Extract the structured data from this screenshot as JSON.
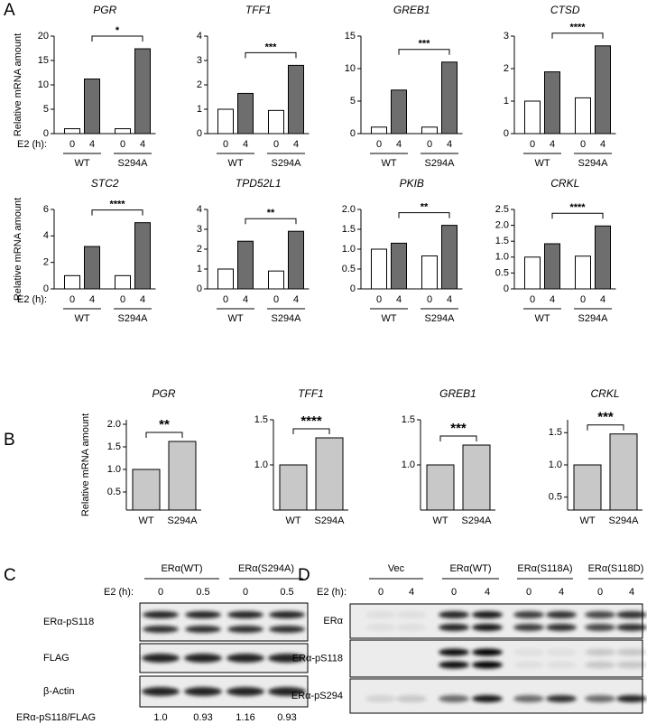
{
  "panel_labels": [
    "A",
    "B",
    "C",
    "D"
  ],
  "chart_data": [
    {
      "type": "bar",
      "title": "PGR",
      "y_label": "Relative mRNA amount",
      "x_label": "E2 (h):",
      "categories": [
        "0",
        "4",
        "0",
        "4"
      ],
      "groups": [
        "WT",
        "S294A"
      ],
      "values": [
        1.0,
        11.2,
        1.0,
        17.4
      ],
      "colors": [
        "#ffffff",
        "#6e6e6e",
        "#ffffff",
        "#6e6e6e"
      ],
      "ylim": [
        0,
        20
      ],
      "yticks": [
        0,
        5,
        10,
        15,
        20
      ],
      "significance": "*"
    },
    {
      "type": "bar",
      "title": "TFF1",
      "categories": [
        "0",
        "4",
        "0",
        "4"
      ],
      "groups": [
        "WT",
        "S294A"
      ],
      "values": [
        1.0,
        1.65,
        0.95,
        2.8
      ],
      "colors": [
        "#ffffff",
        "#6e6e6e",
        "#ffffff",
        "#6e6e6e"
      ],
      "ylim": [
        0,
        4
      ],
      "yticks": [
        0,
        1,
        2,
        3,
        4
      ],
      "significance": "***"
    },
    {
      "type": "bar",
      "title": "GREB1",
      "categories": [
        "0",
        "4",
        "0",
        "4"
      ],
      "groups": [
        "WT",
        "S294A"
      ],
      "values": [
        1.0,
        6.7,
        1.0,
        11.0
      ],
      "colors": [
        "#ffffff",
        "#6e6e6e",
        "#ffffff",
        "#6e6e6e"
      ],
      "ylim": [
        0,
        15
      ],
      "yticks": [
        0,
        5,
        10,
        15
      ],
      "significance": "***"
    },
    {
      "type": "bar",
      "title": "CTSD",
      "categories": [
        "0",
        "4",
        "0",
        "4"
      ],
      "groups": [
        "WT",
        "S294A"
      ],
      "values": [
        1.0,
        1.9,
        1.1,
        2.7
      ],
      "colors": [
        "#ffffff",
        "#6e6e6e",
        "#ffffff",
        "#6e6e6e"
      ],
      "ylim": [
        0,
        3
      ],
      "yticks": [
        0,
        1,
        2,
        3
      ],
      "significance": "****"
    },
    {
      "type": "bar",
      "title": "STC2",
      "y_label": "Relative mRNA amount",
      "x_label": "E2 (h):",
      "categories": [
        "0",
        "4",
        "0",
        "4"
      ],
      "groups": [
        "WT",
        "S294A"
      ],
      "values": [
        1.0,
        3.2,
        1.0,
        5.0
      ],
      "colors": [
        "#ffffff",
        "#6e6e6e",
        "#ffffff",
        "#6e6e6e"
      ],
      "ylim": [
        0,
        6
      ],
      "yticks": [
        0,
        2,
        4,
        6
      ],
      "significance": "****"
    },
    {
      "type": "bar",
      "title": "TPD52L1",
      "categories": [
        "0",
        "4",
        "0",
        "4"
      ],
      "groups": [
        "WT",
        "S294A"
      ],
      "values": [
        1.0,
        2.4,
        0.9,
        2.9
      ],
      "colors": [
        "#ffffff",
        "#6e6e6e",
        "#ffffff",
        "#6e6e6e"
      ],
      "ylim": [
        0,
        4
      ],
      "yticks": [
        0,
        1,
        2,
        3,
        4
      ],
      "significance": "**"
    },
    {
      "type": "bar",
      "title": "PKIB",
      "categories": [
        "0",
        "4",
        "0",
        "4"
      ],
      "groups": [
        "WT",
        "S294A"
      ],
      "values": [
        1.0,
        1.15,
        0.83,
        1.6
      ],
      "colors": [
        "#ffffff",
        "#6e6e6e",
        "#ffffff",
        "#6e6e6e"
      ],
      "ylim": [
        0,
        2
      ],
      "yticks": [
        0,
        0.5,
        {
          "value": 1,
          "label": "1.0"
        },
        1.5,
        {
          "value": 2,
          "label": "2.0"
        }
      ],
      "significance": "**"
    },
    {
      "type": "bar",
      "title": "CRKL",
      "categories": [
        "0",
        "4",
        "0",
        "4"
      ],
      "groups": [
        "WT",
        "S294A"
      ],
      "values": [
        1.0,
        1.42,
        1.03,
        1.98
      ],
      "colors": [
        "#ffffff",
        "#6e6e6e",
        "#ffffff",
        "#6e6e6e"
      ],
      "ylim": [
        0,
        2.5
      ],
      "yticks": [
        0,
        0.5,
        {
          "value": 1,
          "label": "1.0"
        },
        1.5,
        {
          "value": 2,
          "label": "2.0"
        },
        2.5
      ],
      "significance": "****"
    },
    {
      "type": "bar",
      "title": "PGR",
      "y_label": "Relative mRNA amount",
      "categories": [
        "WT",
        "S294A"
      ],
      "values": [
        1.0,
        1.62
      ],
      "colors": [
        "#c8c8c8",
        "#c8c8c8"
      ],
      "ylim": [
        0.1,
        2.1
      ],
      "yticks": [
        0.5,
        {
          "value": 1,
          "label": "1.0"
        },
        1.5,
        {
          "value": 2,
          "label": "2.0"
        }
      ],
      "significance": "**"
    },
    {
      "type": "bar",
      "title": "TFF1",
      "categories": [
        "WT",
        "S294A"
      ],
      "values": [
        1.0,
        1.3
      ],
      "colors": [
        "#c8c8c8",
        "#c8c8c8"
      ],
      "ylim": [
        0.5,
        1.5
      ],
      "yticks": [
        {
          "value": 1,
          "label": "1.0"
        },
        1.5
      ],
      "significance": "****"
    },
    {
      "type": "bar",
      "title": "GREB1",
      "categories": [
        "WT",
        "S294A"
      ],
      "values": [
        1.0,
        1.22
      ],
      "colors": [
        "#c8c8c8",
        "#c8c8c8"
      ],
      "ylim": [
        0.5,
        1.5
      ],
      "yticks": [
        {
          "value": 1,
          "label": "1.0"
        },
        1.5
      ],
      "significance": "***"
    },
    {
      "type": "bar",
      "title": "CRKL",
      "categories": [
        "WT",
        "S294A"
      ],
      "values": [
        1.0,
        1.48
      ],
      "colors": [
        "#c8c8c8",
        "#c8c8c8"
      ],
      "ylim": [
        0.3,
        1.7
      ],
      "yticks": [
        0.5,
        {
          "value": 1,
          "label": "1.0"
        },
        1.5
      ],
      "significance": "***"
    }
  ],
  "blot_c": {
    "groups": [
      "ERα(WT)",
      "ERα(S294A)"
    ],
    "treatment_label": "E2 (h):",
    "lanes": [
      "0",
      "0.5",
      "0",
      "0.5"
    ],
    "rows": [
      "ERα-pS118",
      "FLAG",
      "β-Actin"
    ],
    "quant_label": "ERα-pS118/FLAG",
    "quant_values": [
      "1.0",
      "0.93",
      "1.16",
      "0.93"
    ]
  },
  "blot_d": {
    "groups": [
      "Vec",
      "ERα(WT)",
      "ERα(S118A)",
      "ERα(S118D)"
    ],
    "treatment_label": "E2 (h):",
    "lanes": [
      "0",
      "4",
      "0",
      "4",
      "0",
      "4",
      "0",
      "4"
    ],
    "rows": [
      "ERα",
      "ERα-pS118",
      "ERα-pS294"
    ]
  }
}
